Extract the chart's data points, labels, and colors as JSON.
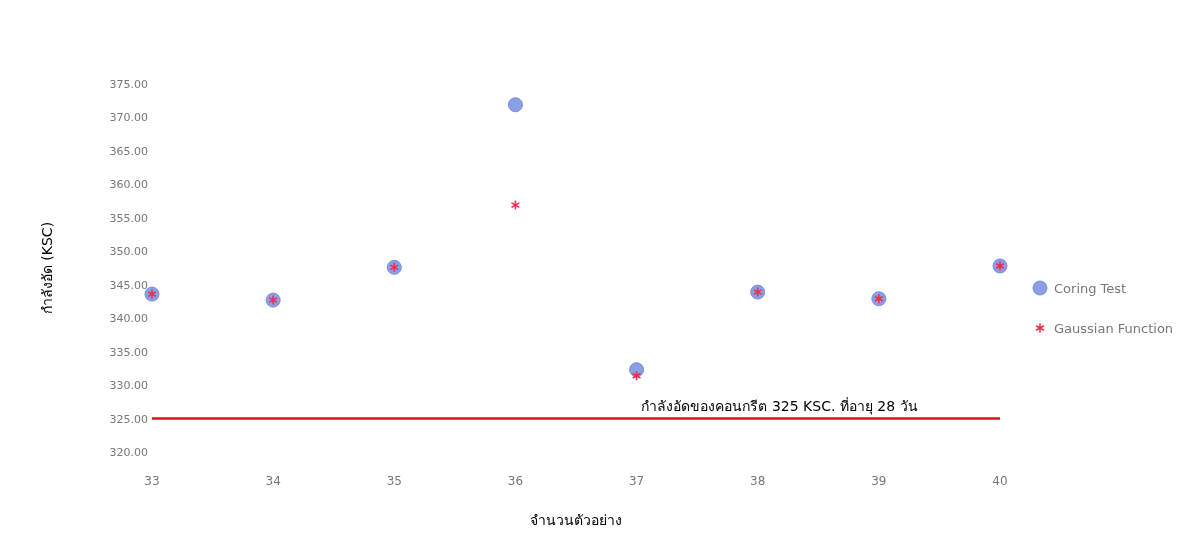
{
  "chart_data": {
    "type": "scatter",
    "xlabel": "จำนวนตัวอย่าง",
    "ylabel": "กำลังอัด (KSC)",
    "x": [
      33,
      34,
      35,
      36,
      37,
      38,
      39,
      40
    ],
    "series": [
      {
        "name": "Coring Test",
        "color": "#8c9fe6",
        "marker": "circle",
        "values": [
          343.6,
          342.7,
          347.6,
          371.9,
          332.3,
          343.9,
          342.9,
          347.8
        ]
      },
      {
        "name": "Gaussian Function",
        "color": "#e8304f",
        "marker": "cross",
        "values": [
          343.6,
          342.7,
          347.6,
          356.9,
          331.4,
          343.9,
          342.9,
          347.8
        ]
      }
    ],
    "xlim": [
      33,
      40
    ],
    "xticks": [
      33,
      34,
      35,
      36,
      37,
      38,
      39,
      40
    ],
    "ylim": [
      320,
      375
    ],
    "yticks": [
      {
        "value": 320,
        "label": "320.00"
      },
      {
        "value": 325,
        "label": "325.00"
      },
      {
        "value": 330,
        "label": "330.00"
      },
      {
        "value": 335,
        "label": "335.00"
      },
      {
        "value": 340,
        "label": "340.00"
      },
      {
        "value": 345,
        "label": "345.00"
      },
      {
        "value": 350,
        "label": "350.00"
      },
      {
        "value": 355,
        "label": "355.00"
      },
      {
        "value": 360,
        "label": "360.00"
      },
      {
        "value": 365,
        "label": "365.00"
      },
      {
        "value": 370,
        "label": "370.00"
      },
      {
        "value": 375,
        "label": "375.00"
      }
    ],
    "ref_lines": [
      {
        "axis": "y",
        "value": 325,
        "label": "กำลังอัดของคอนกรีต 325 KSC. ที่อายุ 28 วัน",
        "color": "#e0101a"
      }
    ],
    "grid": false,
    "legend": "right"
  }
}
